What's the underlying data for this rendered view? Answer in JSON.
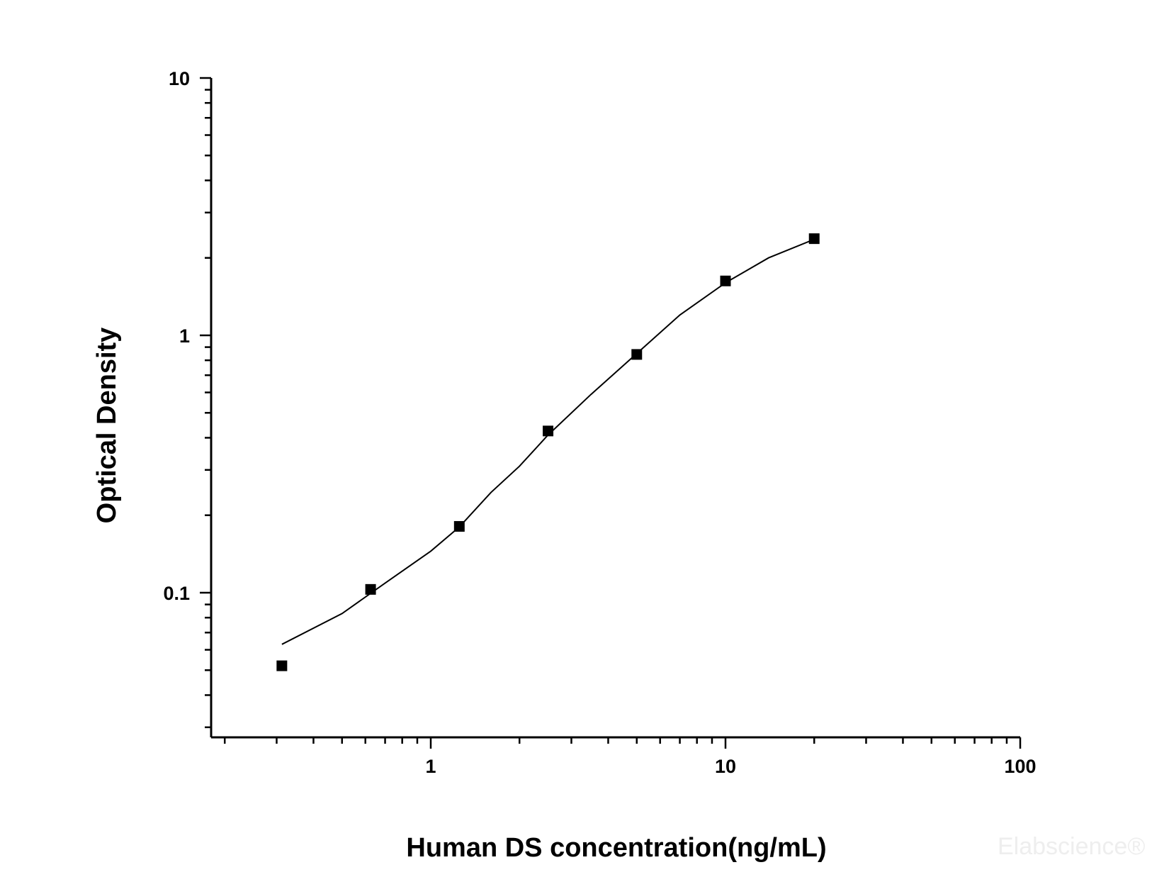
{
  "chart_data": {
    "type": "scatter",
    "title": "",
    "xlabel": "Human DS concentration(ng/mL)",
    "ylabel": "Optical Density",
    "x_scale": "log",
    "y_scale": "log",
    "xlim": [
      0.18,
      100
    ],
    "ylim": [
      0.03,
      10
    ],
    "x_tick_labels": [
      "1",
      "10",
      "100"
    ],
    "y_tick_labels": [
      "0.1",
      "1",
      "10"
    ],
    "grid": false,
    "legend": "none",
    "series": [
      {
        "marker": "square",
        "color": "#000000",
        "x": [
          0.3125,
          0.625,
          1.25,
          2.5,
          5,
          10,
          20
        ],
        "y": [
          0.052,
          0.103,
          0.181,
          0.425,
          0.843,
          1.627,
          2.375
        ]
      }
    ],
    "fit_curve": {
      "x": [
        0.3125,
        0.5,
        0.7,
        1.0,
        1.25,
        1.6,
        2.0,
        2.5,
        3.5,
        5,
        7,
        10,
        14,
        20
      ],
      "y": [
        0.063,
        0.083,
        0.109,
        0.145,
        0.18,
        0.245,
        0.31,
        0.41,
        0.59,
        0.85,
        1.2,
        1.6,
        2.0,
        2.36
      ]
    },
    "watermark": "Elabscience®"
  }
}
